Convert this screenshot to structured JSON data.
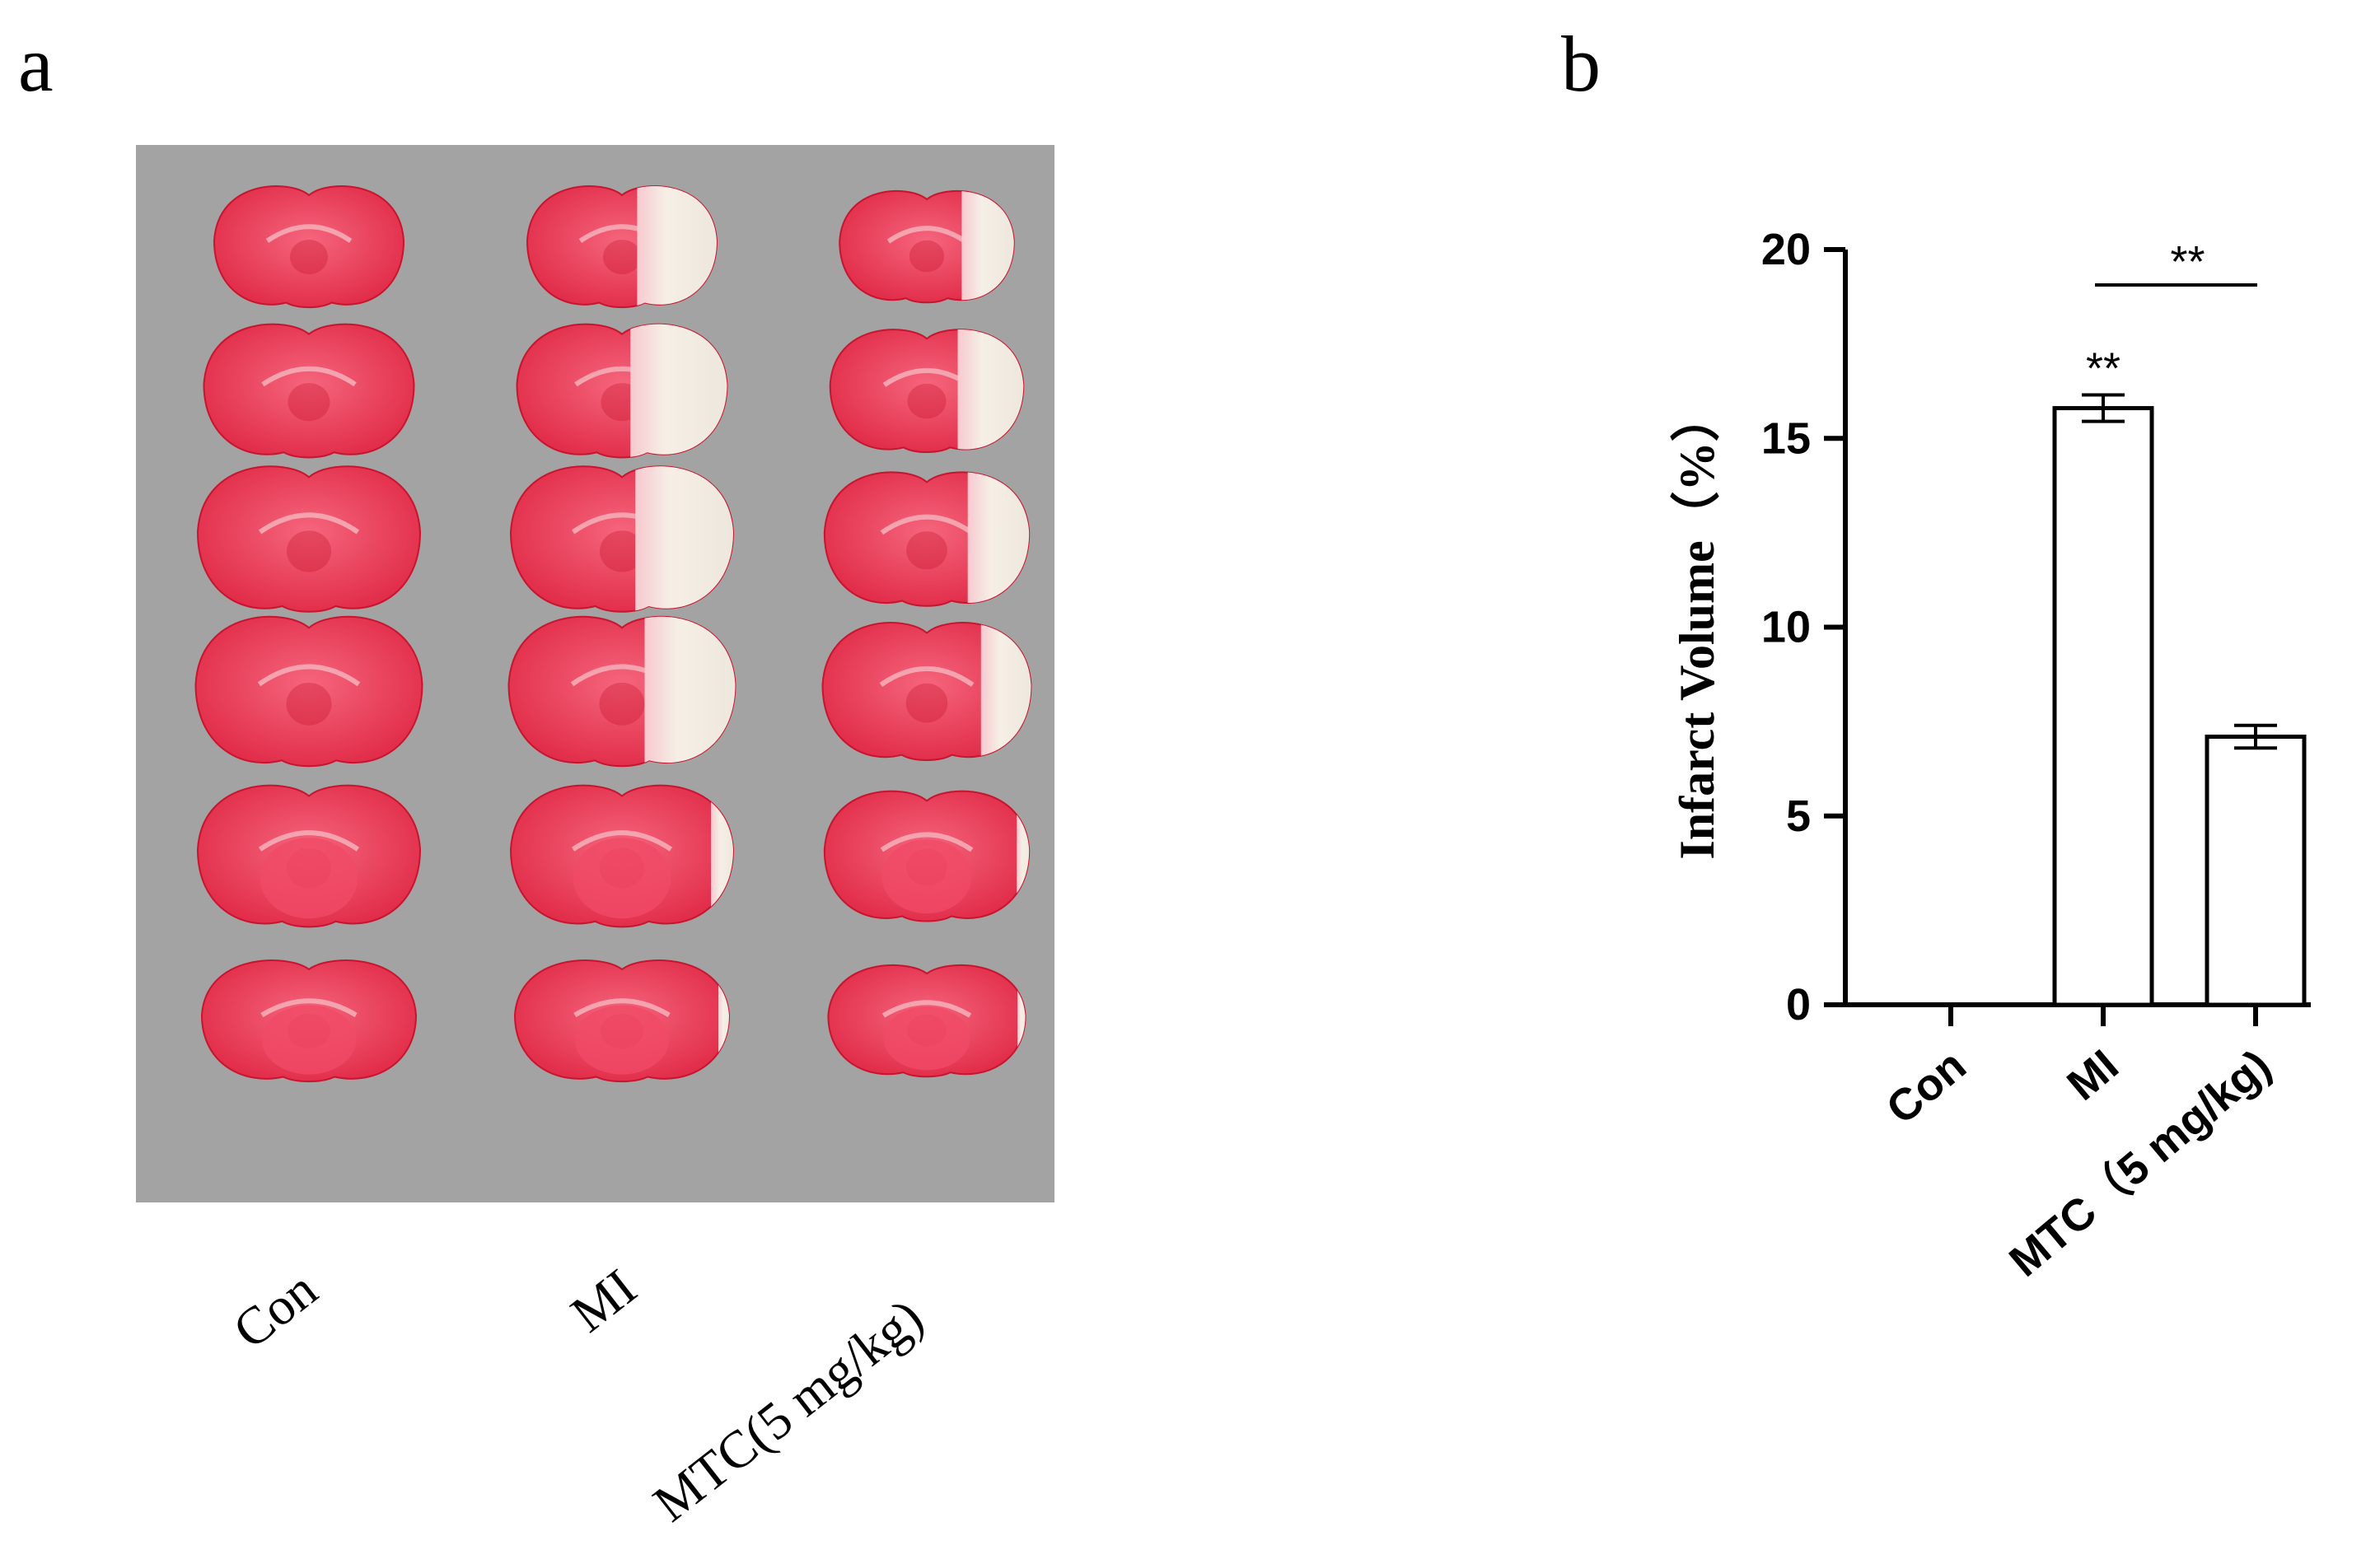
{
  "panel_a": {
    "label": "a",
    "group_labels": [
      "Con",
      "MI",
      "MTC(5 mg/kg)"
    ],
    "rows": 6,
    "colors": {
      "background": "#a3a3a3",
      "tissue": "#ee3a57",
      "tissue_dark": "#c8142e",
      "infarct": "#f3ece2"
    },
    "infarct_extent": {
      "Con": [
        0,
        0,
        0,
        0,
        0,
        0
      ],
      "MI": [
        0.42,
        0.46,
        0.44,
        0.4,
        0.1,
        0.05
      ],
      "MTC(5 mg/kg)": [
        0.3,
        0.34,
        0.3,
        0.24,
        0.06,
        0.04
      ]
    }
  },
  "panel_b": {
    "label": "b",
    "significance": {
      "pair_label": "**",
      "MI_vs_Con": "**"
    }
  },
  "chart_data": {
    "type": "bar",
    "categories": [
      "Con",
      "MI",
      "MTC（5 mg/kg)"
    ],
    "series": [
      {
        "values": [
          0,
          15.8,
          7.1
        ],
        "errors": [
          0,
          0.35,
          0.3
        ]
      }
    ],
    "xlabel": "",
    "ylabel": "Infarct Volume（%）",
    "ylim": [
      0,
      20
    ],
    "yticks": [
      "0",
      "5",
      "10",
      "15",
      "20"
    ],
    "grid": false,
    "bar_color": "#ffffff",
    "edge_color": "#000000"
  }
}
